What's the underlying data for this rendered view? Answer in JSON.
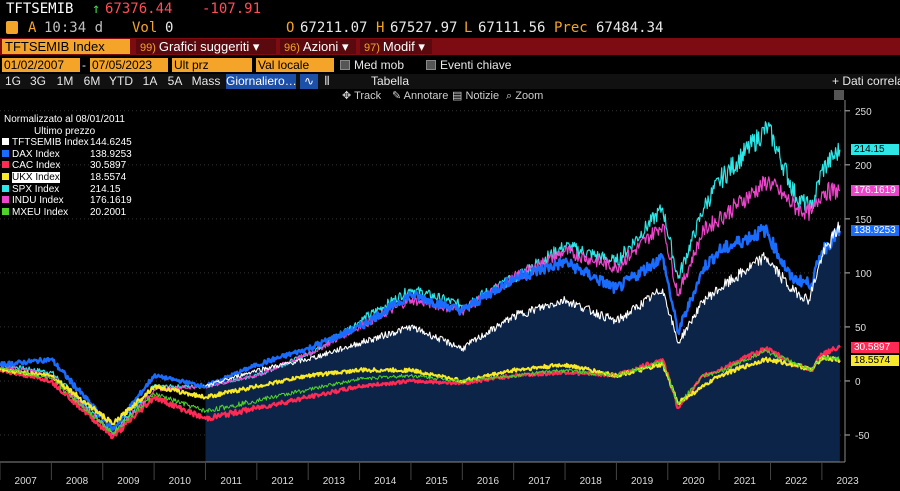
{
  "header": {
    "ticker": "TFTSEMIB",
    "arrow": "↑",
    "price": "67376.44",
    "change": "-107.91",
    "flag": "A",
    "time": "10:34 d",
    "vol_label": "Vol",
    "vol_value": "0",
    "open_label": "O",
    "open": "67211.07",
    "high_label": "H",
    "high": "67527.97",
    "low_label": "L",
    "low": "67111.56",
    "prev_label": "Prec",
    "prev": "67484.34"
  },
  "toolbar": {
    "index_name": "TFTSEMIB Index",
    "menus": [
      {
        "num": "99)",
        "label": "Grafici suggeriti"
      },
      {
        "num": "96)",
        "label": "Azioni"
      },
      {
        "num": "97)",
        "label": "Modif"
      }
    ]
  },
  "controls": {
    "date_from": "01/02/2007",
    "date_to": "07/05/2023",
    "price_field": "Ult prz",
    "currency": "Val locale",
    "moving_avg": "Med mob",
    "key_events": "Eventi chiave"
  },
  "periods": [
    "1G",
    "3G",
    "1M",
    "6M",
    "YTD",
    "1A",
    "5A",
    "Mass"
  ],
  "frequency": "Giornaliero",
  "tabella": "Tabella",
  "dati_correlati": "+ Dati correla",
  "tools": [
    "Track",
    "Annotare",
    "Notizie",
    "Zoom"
  ],
  "legend": {
    "header1": "Normalizzato al 08/01/2011",
    "header2": "Ultimo prezzo",
    "items": [
      {
        "name": "TFTSEMIB Index",
        "value": "144.6245",
        "color": "#ffffff"
      },
      {
        "name": "DAX Index",
        "value": "138.9253",
        "color": "#1a6cff"
      },
      {
        "name": "CAC Index",
        "value": "30.5897",
        "color": "#ff2b55"
      },
      {
        "name": "UKX Index",
        "value": "18.5574",
        "color": "#f7e92a"
      },
      {
        "name": "SPX Index",
        "value": "214.15",
        "color": "#2ee6e6"
      },
      {
        "name": "INDU Index",
        "value": "176.1619",
        "color": "#ee44cc"
      },
      {
        "name": "MXEU Index",
        "value": "20.2001",
        "color": "#4fd32a"
      }
    ]
  },
  "tags": [
    {
      "value": "214.15",
      "bg": "#2ee6e6",
      "fg": "#000"
    },
    {
      "value": "176.1619",
      "bg": "#ee44cc",
      "fg": "#fff"
    },
    {
      "value": "138.9253",
      "bg": "#1a6cff",
      "fg": "#fff"
    },
    {
      "value": "30.5897",
      "bg": "#ff2b55",
      "fg": "#fff"
    },
    {
      "value": "18.5574",
      "bg": "#f7e92a",
      "fg": "#000"
    }
  ],
  "chart_data": {
    "type": "line",
    "title": "",
    "ylim": [
      -75,
      260
    ],
    "yticks": [
      -50,
      0,
      50,
      100,
      150,
      200,
      250
    ],
    "x_years": [
      "2007",
      "2008",
      "2009",
      "2010",
      "2011",
      "2012",
      "2013",
      "2014",
      "2015",
      "2016",
      "2017",
      "2018",
      "2019",
      "2020",
      "2021",
      "2022",
      "2023"
    ],
    "shaded_area_start_year": 2011,
    "series": [
      {
        "name": "SPX Index",
        "color": "#2ee6e6",
        "points": [
          [
            2007.0,
            15
          ],
          [
            2008.0,
            8
          ],
          [
            2009.2,
            -48
          ],
          [
            2010.0,
            -5
          ],
          [
            2011.0,
            -5
          ],
          [
            2012.0,
            5
          ],
          [
            2013.0,
            25
          ],
          [
            2014.0,
            55
          ],
          [
            2015.0,
            85
          ],
          [
            2016.0,
            70
          ],
          [
            2017.0,
            95
          ],
          [
            2018.0,
            125
          ],
          [
            2019.0,
            110
          ],
          [
            2019.9,
            160
          ],
          [
            2020.2,
            95
          ],
          [
            2020.7,
            160
          ],
          [
            2021.0,
            185
          ],
          [
            2021.95,
            235
          ],
          [
            2022.5,
            170
          ],
          [
            2022.8,
            160
          ],
          [
            2023.0,
            195
          ],
          [
            2023.35,
            214
          ]
        ]
      },
      {
        "name": "INDU Index",
        "color": "#ee44cc",
        "points": [
          [
            2007.0,
            15
          ],
          [
            2008.0,
            5
          ],
          [
            2009.2,
            -50
          ],
          [
            2010.0,
            -8
          ],
          [
            2011.0,
            -5
          ],
          [
            2012.0,
            5
          ],
          [
            2013.0,
            25
          ],
          [
            2014.0,
            50
          ],
          [
            2015.0,
            75
          ],
          [
            2016.0,
            65
          ],
          [
            2017.0,
            95
          ],
          [
            2018.0,
            120
          ],
          [
            2019.0,
            105
          ],
          [
            2019.9,
            145
          ],
          [
            2020.2,
            80
          ],
          [
            2020.7,
            140
          ],
          [
            2021.0,
            150
          ],
          [
            2021.95,
            185
          ],
          [
            2022.5,
            160
          ],
          [
            2022.8,
            155
          ],
          [
            2023.0,
            175
          ],
          [
            2023.35,
            176
          ]
        ]
      },
      {
        "name": "DAX Index",
        "color": "#1a6cff",
        "points": [
          [
            2007.0,
            15
          ],
          [
            2008.0,
            20
          ],
          [
            2009.2,
            -45
          ],
          [
            2010.0,
            5
          ],
          [
            2011.0,
            -5
          ],
          [
            2012.0,
            15
          ],
          [
            2013.0,
            30
          ],
          [
            2014.0,
            50
          ],
          [
            2015.0,
            80
          ],
          [
            2016.0,
            65
          ],
          [
            2017.0,
            95
          ],
          [
            2018.0,
            110
          ],
          [
            2019.0,
            85
          ],
          [
            2019.9,
            115
          ],
          [
            2020.2,
            45
          ],
          [
            2020.7,
            105
          ],
          [
            2021.0,
            120
          ],
          [
            2021.9,
            140
          ],
          [
            2022.4,
            95
          ],
          [
            2022.8,
            90
          ],
          [
            2023.0,
            120
          ],
          [
            2023.35,
            139
          ]
        ]
      },
      {
        "name": "TFTSEMIB Index",
        "color": "#ffffff",
        "points": [
          [
            2011.0,
            -5
          ],
          [
            2012.0,
            10
          ],
          [
            2013.0,
            20
          ],
          [
            2014.0,
            35
          ],
          [
            2015.0,
            50
          ],
          [
            2016.0,
            30
          ],
          [
            2017.0,
            60
          ],
          [
            2018.0,
            75
          ],
          [
            2019.0,
            55
          ],
          [
            2019.9,
            85
          ],
          [
            2020.2,
            35
          ],
          [
            2020.7,
            75
          ],
          [
            2021.0,
            85
          ],
          [
            2021.9,
            115
          ],
          [
            2022.4,
            85
          ],
          [
            2022.75,
            75
          ],
          [
            2023.0,
            115
          ],
          [
            2023.35,
            144
          ]
        ]
      },
      {
        "name": "CAC Index",
        "color": "#ff2b55",
        "points": [
          [
            2007.0,
            10
          ],
          [
            2008.0,
            0
          ],
          [
            2009.2,
            -52
          ],
          [
            2010.0,
            -15
          ],
          [
            2011.0,
            -35
          ],
          [
            2012.0,
            -25
          ],
          [
            2013.0,
            -15
          ],
          [
            2014.0,
            -5
          ],
          [
            2015.0,
            0
          ],
          [
            2016.0,
            -2
          ],
          [
            2017.0,
            5
          ],
          [
            2018.0,
            8
          ],
          [
            2019.0,
            5
          ],
          [
            2019.9,
            20
          ],
          [
            2020.2,
            -25
          ],
          [
            2020.7,
            5
          ],
          [
            2021.0,
            10
          ],
          [
            2021.9,
            30
          ],
          [
            2022.5,
            15
          ],
          [
            2022.8,
            10
          ],
          [
            2023.0,
            25
          ],
          [
            2023.35,
            31
          ]
        ]
      },
      {
        "name": "UKX Index",
        "color": "#f7e92a",
        "points": [
          [
            2007.0,
            10
          ],
          [
            2008.0,
            5
          ],
          [
            2009.2,
            -40
          ],
          [
            2010.0,
            -5
          ],
          [
            2011.0,
            -15
          ],
          [
            2012.0,
            -5
          ],
          [
            2013.0,
            5
          ],
          [
            2014.0,
            10
          ],
          [
            2015.0,
            10
          ],
          [
            2016.0,
            0
          ],
          [
            2017.0,
            10
          ],
          [
            2018.0,
            15
          ],
          [
            2019.0,
            5
          ],
          [
            2019.9,
            15
          ],
          [
            2020.2,
            -20
          ],
          [
            2020.7,
            -5
          ],
          [
            2021.0,
            5
          ],
          [
            2021.9,
            20
          ],
          [
            2022.5,
            15
          ],
          [
            2022.8,
            10
          ],
          [
            2023.0,
            22
          ],
          [
            2023.35,
            19
          ]
        ]
      },
      {
        "name": "MXEU Index",
        "color": "#4fd32a",
        "points": [
          [
            2007.0,
            12
          ],
          [
            2008.0,
            2
          ],
          [
            2009.2,
            -48
          ],
          [
            2010.0,
            -12
          ],
          [
            2011.0,
            -28
          ],
          [
            2012.0,
            -18
          ],
          [
            2013.0,
            -8
          ],
          [
            2014.0,
            2
          ],
          [
            2015.0,
            5
          ],
          [
            2016.0,
            0
          ],
          [
            2017.0,
            5
          ],
          [
            2018.0,
            10
          ],
          [
            2019.0,
            5
          ],
          [
            2019.9,
            18
          ],
          [
            2020.2,
            -22
          ],
          [
            2020.7,
            5
          ],
          [
            2021.0,
            8
          ],
          [
            2021.9,
            28
          ],
          [
            2022.5,
            15
          ],
          [
            2022.8,
            10
          ],
          [
            2023.0,
            22
          ],
          [
            2023.35,
            20
          ]
        ]
      }
    ]
  }
}
